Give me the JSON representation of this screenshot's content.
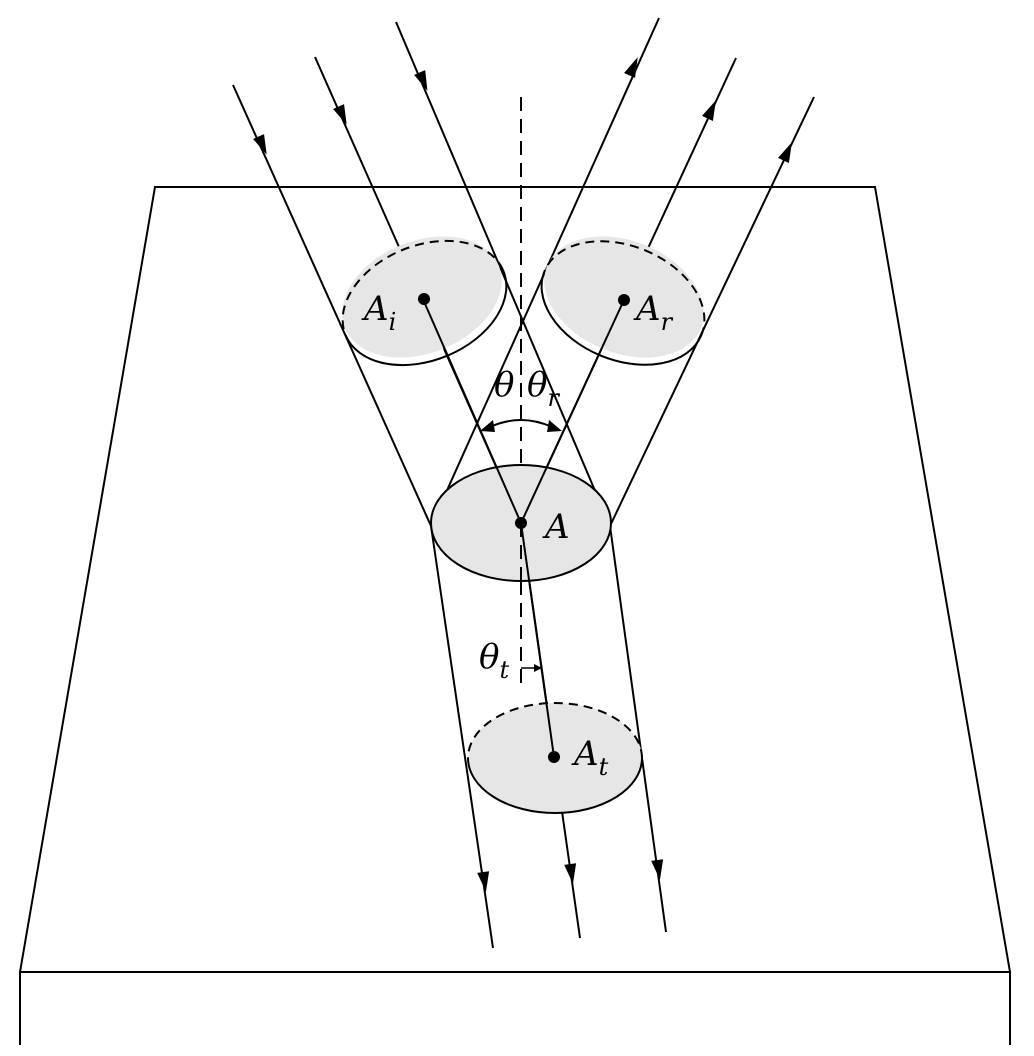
{
  "colors": {
    "line": "#000000",
    "beam_fill": "#e6e6e6",
    "background": "#ffffff"
  },
  "labels": {
    "incident_area": {
      "main": "A",
      "sub": "i"
    },
    "reflected_area": {
      "main": "A",
      "sub": "r"
    },
    "interface_area": {
      "main": "A",
      "sub": ""
    },
    "transmitted_area": {
      "main": "A",
      "sub": "t"
    },
    "incidence_angle": {
      "main": "θ",
      "sub": ""
    },
    "reflection_angle": {
      "main": "θ",
      "sub": "r"
    },
    "transmission_angle": {
      "main": "θ",
      "sub": "t"
    }
  }
}
